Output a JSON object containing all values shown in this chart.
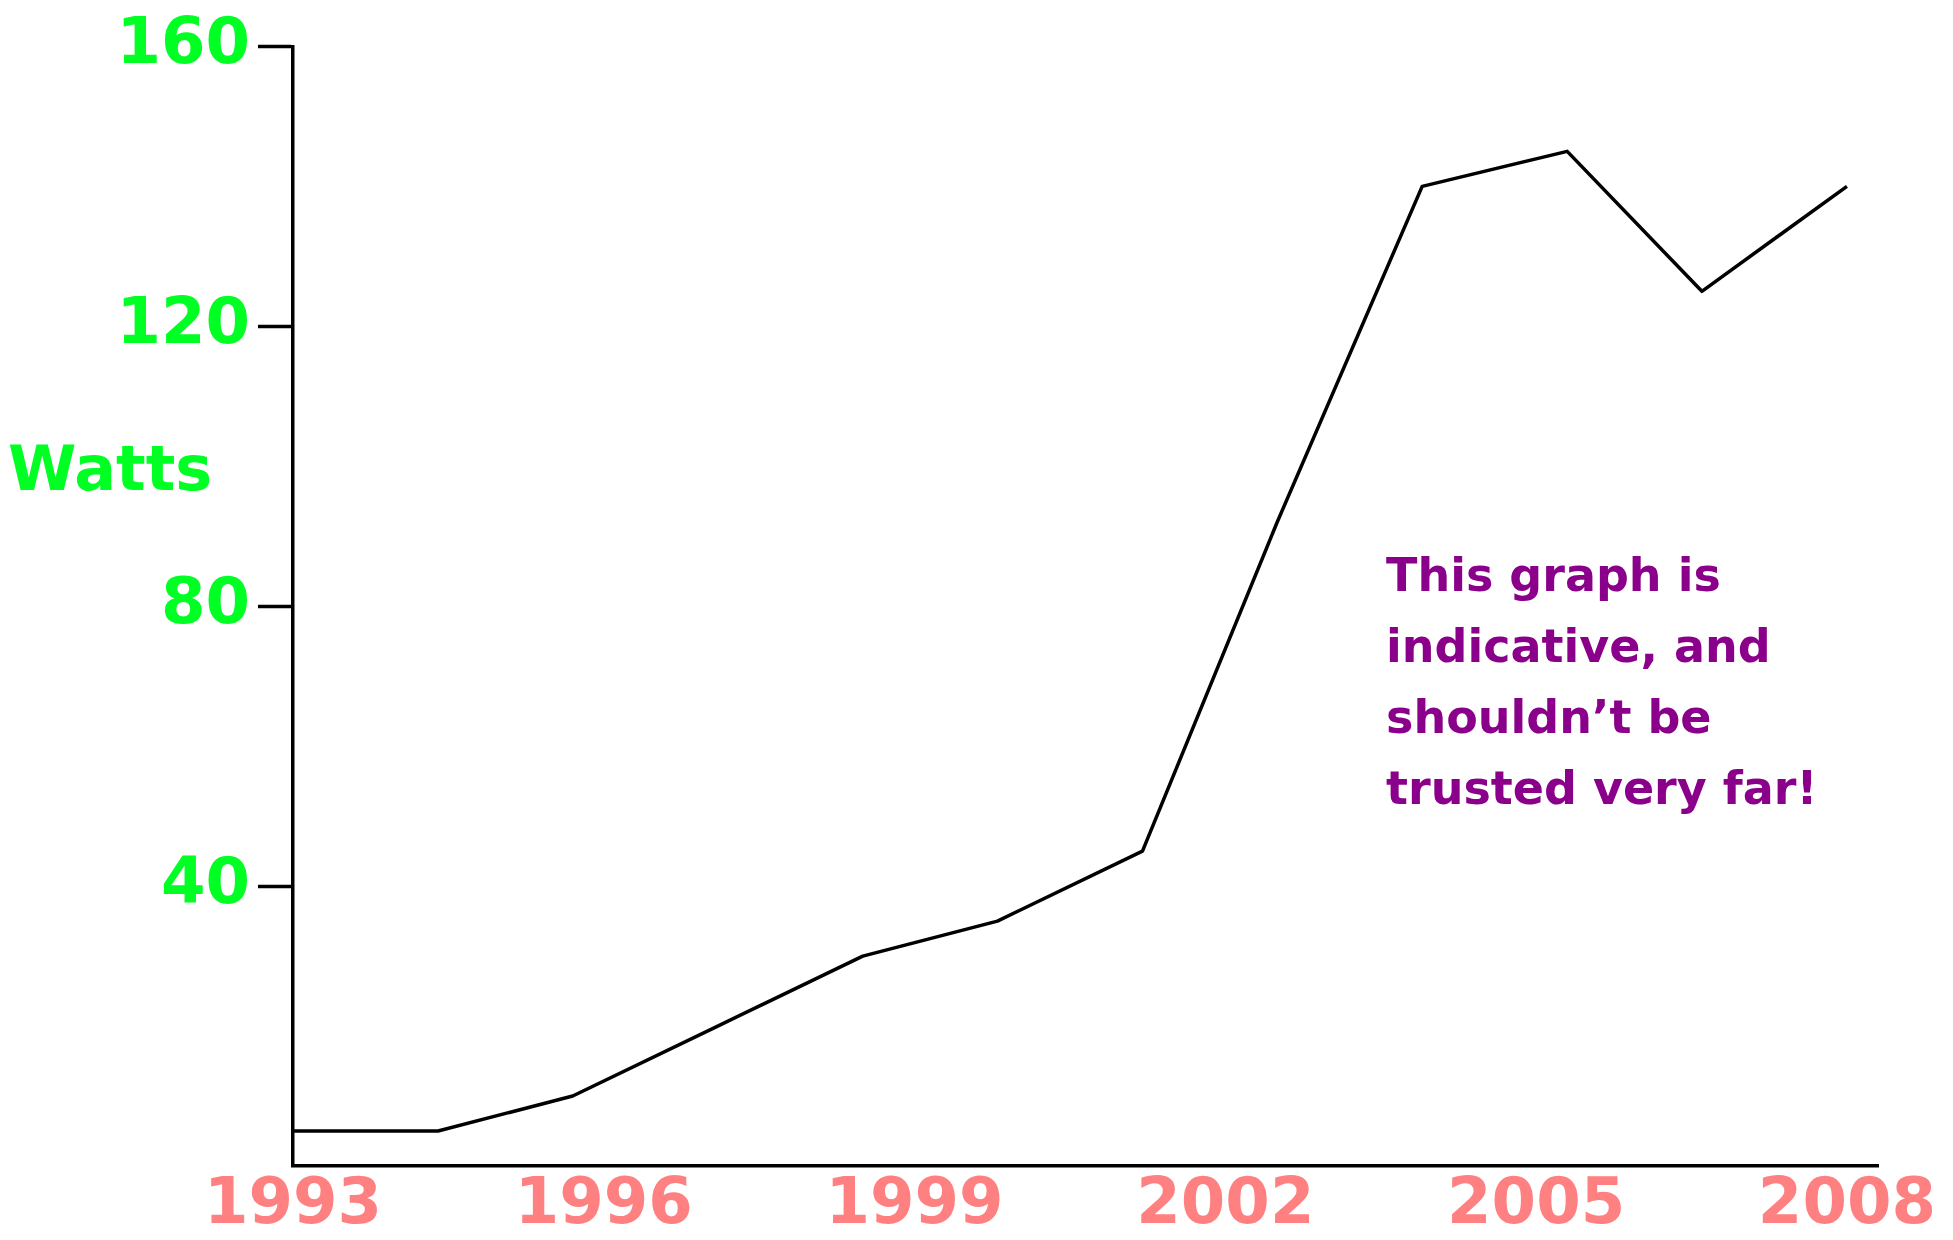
{
  "chart_data": {
    "type": "line",
    "ylabel": "Watts",
    "x": [
      1993,
      1994.4,
      1995.7,
      1997.1,
      1998.5,
      1999.8,
      2001.2,
      2002.5,
      2003.9,
      2005.3,
      2006.6,
      2008
    ],
    "series": [
      {
        "color": "#000000",
        "values": [
          5,
          5,
          10,
          20,
          30,
          35,
          45,
          92,
          140,
          145,
          125,
          140
        ]
      }
    ],
    "xlim": [
      1993,
      2008.3
    ],
    "xticks": [
      1993,
      1996,
      1999,
      2002,
      2005,
      2008
    ],
    "ylim": [
      0,
      160
    ],
    "yticks": [
      40,
      80,
      120,
      160
    ],
    "annotations": [
      "This graph is indicative, and shouldn’t be trusted very far!"
    ],
    "grid": false,
    "legend": false,
    "marker": "none",
    "line_style": "solid"
  }
}
